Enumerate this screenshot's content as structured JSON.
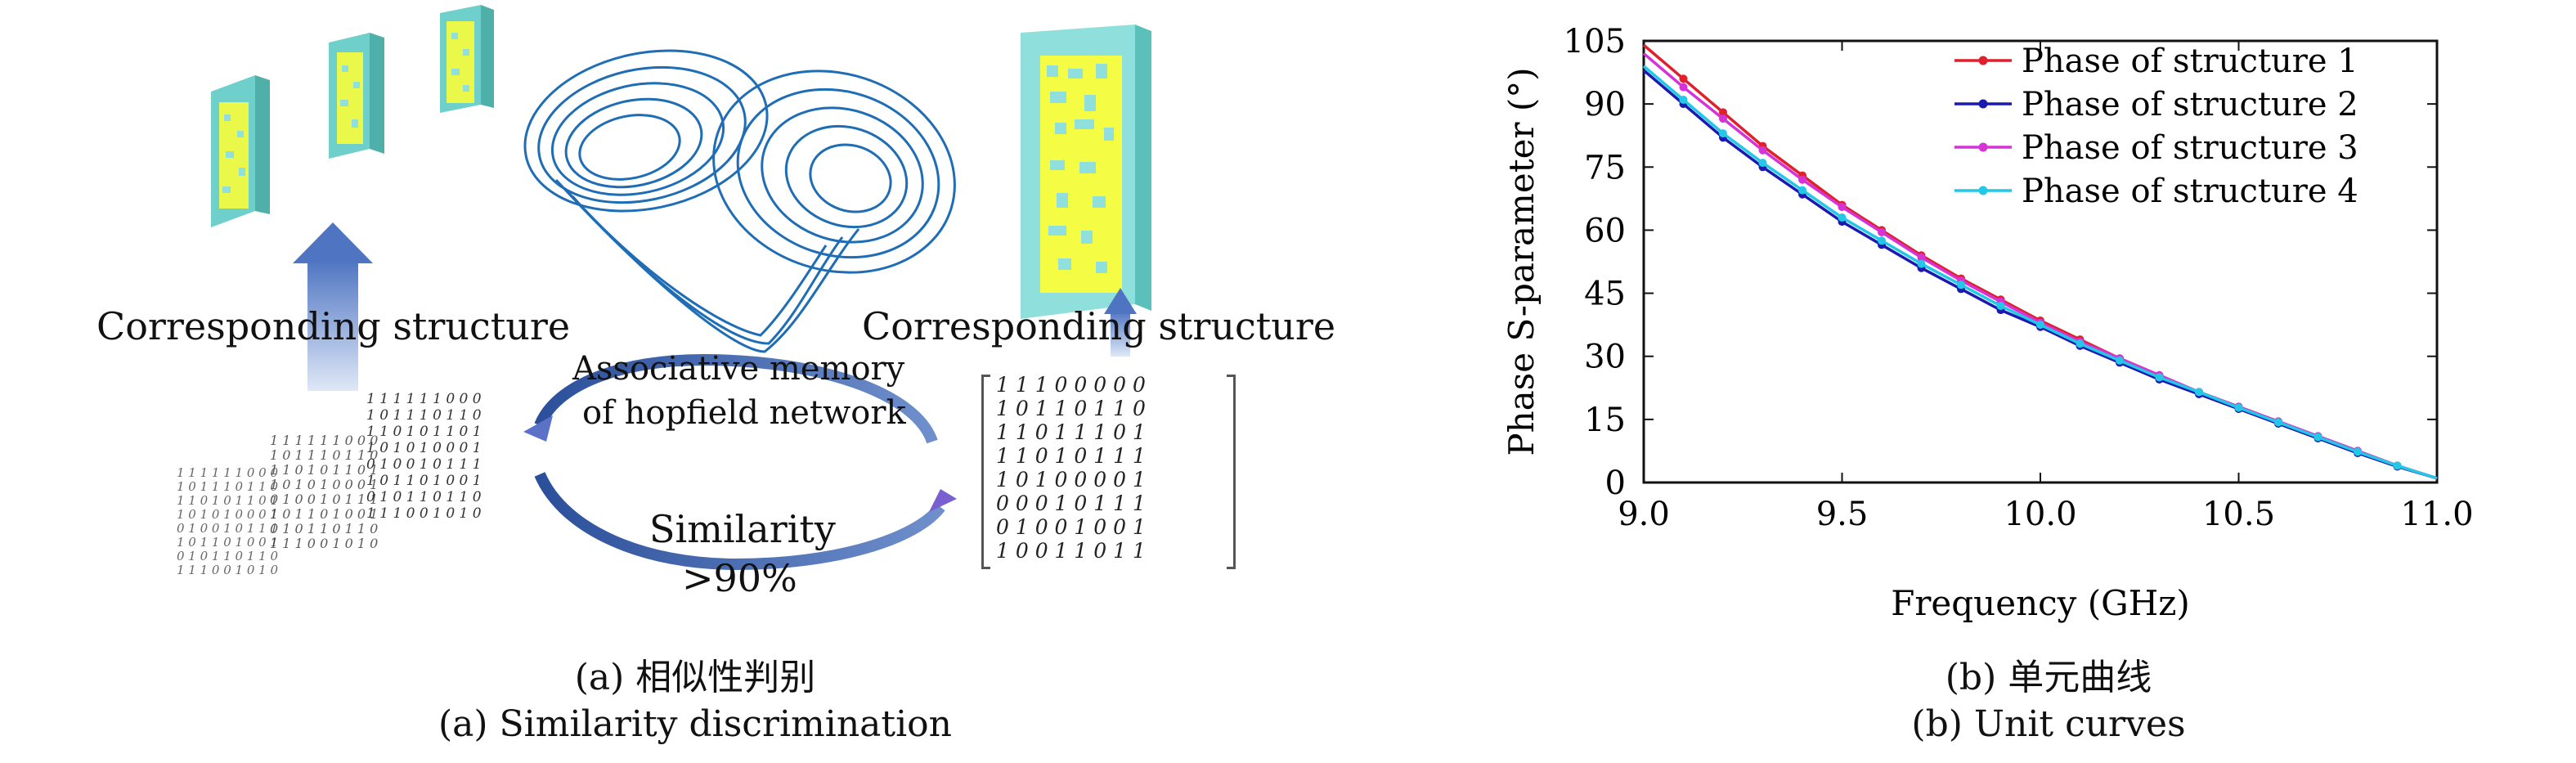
{
  "panel_a": {
    "label_structure_left": "Corresponding structure",
    "label_structure_right": "Corresponding structure",
    "label_memory_line1": "Associative memory",
    "label_memory_line2": "of hopfield network",
    "label_similarity": "Similarity",
    "label_percent": ">90%",
    "caption_cn": "(a) 相似性判别",
    "caption_en": "(a) Similarity discrimination",
    "matrix_big_rows": [
      "1 1 1 0 0 0 0 0",
      "1 0 1 1 0 1 1 0",
      "1 1 0 1 1 1 0 1",
      "1 1 0 1 0 1 1 1",
      "1 0 1 0 0 0 0 1",
      "0 0 0 1 0 1 1 1",
      "0 1 0 0 1 0 0 1",
      "1 0 0 1 1 0 1 1"
    ],
    "matrix_small_rows": [
      "1 1 1 1 1 1 0 0 0",
      "1 0 1 1 1 0 1 1 0",
      "1 1 0 1 0 1 1 0 1",
      "1 0 1 0 1 0 0 0 1",
      "0 1 0 0 1 0 1 1 1",
      "1 0 1 1 0 1 0 0 1",
      "0 1 0 1 1 0 1 1 0",
      "1 1 1 0 0 1 0 1 0"
    ],
    "colors": {
      "arrow_blue": "#5b7fc4",
      "attractor_blue": "#1f6db5",
      "panel_face": "#8fe0dc",
      "pattern_yellow": "#ffff33"
    }
  },
  "panel_b": {
    "caption_cn": "(b) 单元曲线",
    "caption_en": "(b) Unit curves"
  },
  "chart_data": {
    "type": "line",
    "xlabel": "Frequency (GHz)",
    "ylabel": "Phase S-parameter (°)",
    "xlim": [
      9.0,
      11.0
    ],
    "ylim": [
      0,
      105
    ],
    "xticks": [
      "9.0",
      "9.5",
      "10.0",
      "10.5",
      "11.0"
    ],
    "yticks": [
      "0",
      "15",
      "30",
      "45",
      "60",
      "75",
      "90",
      "105"
    ],
    "grid": false,
    "legend_position": "top-right",
    "x": [
      9.0,
      9.1,
      9.2,
      9.3,
      9.4,
      9.5,
      9.6,
      9.7,
      9.8,
      9.9,
      10.0,
      10.1,
      10.2,
      10.3,
      10.4,
      10.5,
      10.6,
      10.7,
      10.8,
      10.9,
      11.0
    ],
    "series": [
      {
        "name": "Phase of structure 1",
        "color": "#e0202c",
        "values": [
          104,
          96,
          88,
          80,
          73,
          66,
          60,
          54,
          48.5,
          43.5,
          38.5,
          34,
          29.5,
          25.5,
          21.5,
          18,
          14.5,
          11,
          7.5,
          4,
          1
        ]
      },
      {
        "name": "Phase of structure 2",
        "color": "#1a1ab0",
        "values": [
          98,
          90,
          82,
          75,
          68.5,
          62,
          56.5,
          51,
          46,
          41,
          37,
          32.5,
          28.5,
          24.5,
          21,
          17.5,
          14,
          10.5,
          7,
          3.8,
          1
        ]
      },
      {
        "name": "Phase of structure 3",
        "color": "#d633d6",
        "values": [
          102,
          94,
          86.5,
          79,
          72,
          65.5,
          59.5,
          53.5,
          48,
          43,
          38,
          33.5,
          29.5,
          25.5,
          21.5,
          18,
          14.5,
          11,
          7.5,
          4,
          1
        ]
      },
      {
        "name": "Phase of structure 4",
        "color": "#22c8e6",
        "values": [
          99,
          91,
          83,
          76,
          69.5,
          63,
          57.5,
          52,
          47,
          42,
          37.5,
          33,
          29,
          25,
          21.5,
          17.8,
          14.3,
          10.8,
          7.3,
          4,
          1
        ]
      }
    ]
  }
}
